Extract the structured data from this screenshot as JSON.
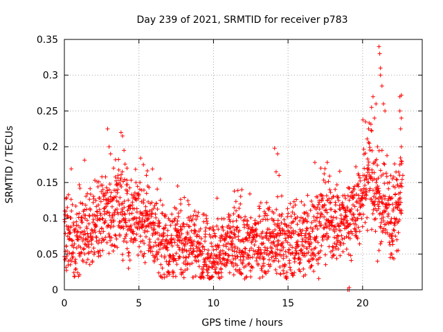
{
  "chart_data": {
    "type": "scatter",
    "title": "Day 239 of 2021, SRMTID for receiver p783",
    "xlabel": "GPS time / hours",
    "ylabel": "SRMTID / TECUs",
    "xlim": [
      0,
      24
    ],
    "ylim": [
      0,
      0.35
    ],
    "x_ticks": [
      0,
      5,
      10,
      15,
      20
    ],
    "x_tick_labels": [
      "0",
      "5",
      "10",
      "15",
      "20"
    ],
    "y_ticks": [
      0,
      0.05,
      0.1,
      0.15,
      0.2,
      0.25,
      0.3,
      0.35
    ],
    "y_tick_labels": [
      "0",
      "0.05",
      "0.1",
      "0.15",
      "0.2",
      "0.25",
      "0.3",
      "0.35"
    ],
    "grid": true,
    "marker": "plus",
    "color": "#ff0000",
    "series": [
      {
        "name": "SRMTID",
        "trend": [
          [
            0,
            0.085
          ],
          [
            0.5,
            0.07
          ],
          [
            1,
            0.07
          ],
          [
            1.5,
            0.085
          ],
          [
            2,
            0.09
          ],
          [
            2.5,
            0.1
          ],
          [
            3,
            0.11
          ],
          [
            3.5,
            0.115
          ],
          [
            4,
            0.11
          ],
          [
            4.5,
            0.105
          ],
          [
            5,
            0.1
          ],
          [
            5.5,
            0.095
          ],
          [
            6,
            0.085
          ],
          [
            6.5,
            0.07
          ],
          [
            7,
            0.065
          ],
          [
            7.5,
            0.065
          ],
          [
            8,
            0.065
          ],
          [
            8.5,
            0.065
          ],
          [
            9,
            0.06
          ],
          [
            9.5,
            0.05
          ],
          [
            10,
            0.05
          ],
          [
            10.5,
            0.055
          ],
          [
            11,
            0.06
          ],
          [
            11.5,
            0.065
          ],
          [
            12,
            0.06
          ],
          [
            12.5,
            0.065
          ],
          [
            13,
            0.07
          ],
          [
            13.5,
            0.07
          ],
          [
            14,
            0.07
          ],
          [
            14.5,
            0.065
          ],
          [
            15,
            0.065
          ],
          [
            15.5,
            0.065
          ],
          [
            16,
            0.07
          ],
          [
            16.5,
            0.075
          ],
          [
            17,
            0.09
          ],
          [
            17.5,
            0.1
          ],
          [
            18,
            0.095
          ],
          [
            18.5,
            0.095
          ],
          [
            19,
            0.1
          ],
          [
            19.5,
            0.11
          ],
          [
            20,
            0.13
          ],
          [
            20.5,
            0.17
          ],
          [
            21,
            0.13
          ],
          [
            21.5,
            0.11
          ],
          [
            22,
            0.1
          ],
          [
            22.5,
            0.13
          ]
        ],
        "spread": 0.022,
        "points": [
          [
            0.1,
            0.11
          ],
          [
            0.2,
            0.115
          ],
          [
            0.4,
            0.035
          ],
          [
            0.5,
            0.04
          ],
          [
            2.9,
            0.225
          ],
          [
            3.0,
            0.2
          ],
          [
            3.1,
            0.19
          ],
          [
            3.3,
            0.17
          ],
          [
            3.6,
            0.16
          ],
          [
            3.8,
            0.22
          ],
          [
            3.9,
            0.215
          ],
          [
            4.0,
            0.195
          ],
          [
            4.2,
            0.17
          ],
          [
            4.3,
            0.03
          ],
          [
            4.8,
            0.15
          ],
          [
            5.3,
            0.175
          ],
          [
            5.5,
            0.16
          ],
          [
            5.6,
            0.145
          ],
          [
            6.7,
            0.017
          ],
          [
            7.0,
            0.035
          ],
          [
            7.6,
            0.145
          ],
          [
            7.8,
            0.12
          ],
          [
            9.3,
            0.025
          ],
          [
            9.6,
            0.02
          ],
          [
            11.4,
            0.138
          ],
          [
            11.8,
            0.12
          ],
          [
            11.9,
            0.14
          ],
          [
            14.1,
            0.198
          ],
          [
            14.2,
            0.165
          ],
          [
            14.3,
            0.19
          ],
          [
            14.4,
            0.16
          ],
          [
            14.3,
            0.13
          ],
          [
            15.3,
            0.02
          ],
          [
            16.8,
            0.178
          ],
          [
            17.2,
            0.17
          ],
          [
            17.5,
            0.15
          ],
          [
            17.8,
            0.14
          ],
          [
            19.0,
            0.0
          ],
          [
            19.1,
            0.0
          ],
          [
            19.1,
            0.003
          ],
          [
            20.2,
            0.235
          ],
          [
            20.4,
            0.225
          ],
          [
            20.6,
            0.255
          ],
          [
            20.7,
            0.27
          ],
          [
            20.8,
            0.24
          ],
          [
            20.9,
            0.26
          ],
          [
            21.0,
            0.2
          ],
          [
            21.1,
            0.34
          ],
          [
            21.15,
            0.33
          ],
          [
            21.2,
            0.31
          ],
          [
            21.2,
            0.3
          ],
          [
            21.3,
            0.285
          ],
          [
            21.4,
            0.26
          ],
          [
            21.5,
            0.25
          ],
          [
            21.3,
            0.195
          ],
          [
            21.0,
            0.04
          ],
          [
            21.1,
            0.055
          ],
          [
            21.9,
            0.05
          ],
          [
            22.0,
            0.045
          ],
          [
            22.5,
            0.27
          ],
          [
            22.6,
            0.272
          ],
          [
            22.5,
            0.25
          ],
          [
            22.6,
            0.24
          ],
          [
            22.55,
            0.225
          ],
          [
            22.6,
            0.2
          ],
          [
            22.5,
            0.175
          ],
          [
            22.6,
            0.18
          ],
          [
            22.7,
            0.16
          ],
          [
            22.4,
            0.12
          ],
          [
            22.2,
            0.075
          ],
          [
            22.3,
            0.07
          ],
          [
            22.4,
            0.08
          ],
          [
            22.0,
            0.155
          ],
          [
            21.8,
            0.15
          ]
        ]
      }
    ]
  }
}
